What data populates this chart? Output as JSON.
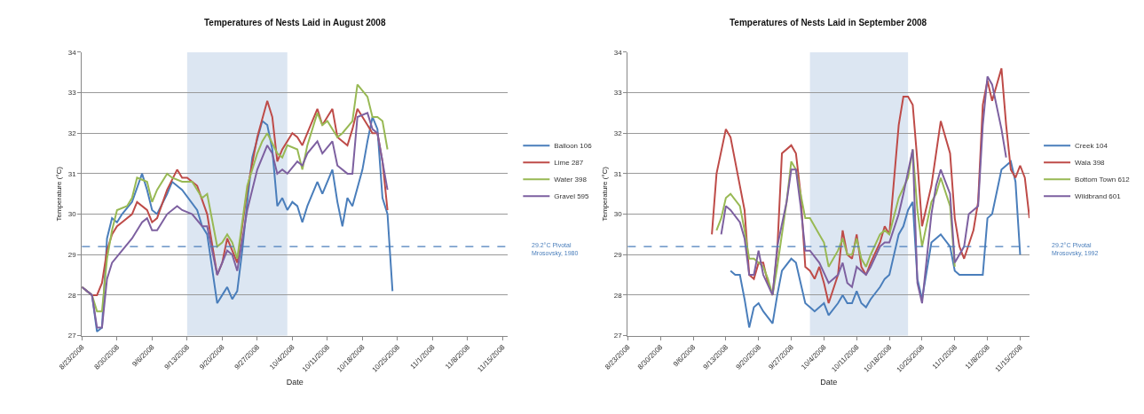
{
  "chart_data": [
    {
      "type": "line",
      "title": "Temperatures of Nests Laid in August 2008",
      "xlabel": "Date",
      "ylabel": "Temperature (°C)",
      "xlim": [
        "2008-08-23",
        "2008-11-16"
      ],
      "ylim": [
        27,
        34
      ],
      "yticks": [
        27,
        28,
        29,
        30,
        31,
        32,
        33,
        34
      ],
      "xticks": [
        {
          "value": "2008-08-23",
          "label": "8/23/2008"
        },
        {
          "value": "2008-08-30",
          "label": "8/30/2008"
        },
        {
          "value": "2008-09-06",
          "label": "9/6/2008"
        },
        {
          "value": "2008-09-13",
          "label": "9/13/2008"
        },
        {
          "value": "2008-09-20",
          "label": "9/20/2008"
        },
        {
          "value": "2008-09-27",
          "label": "9/27/2008"
        },
        {
          "value": "2008-10-04",
          "label": "10/4/2008"
        },
        {
          "value": "2008-10-11",
          "label": "10/11/2008"
        },
        {
          "value": "2008-10-18",
          "label": "10/18/2008"
        },
        {
          "value": "2008-10-25",
          "label": "10/25/2008"
        },
        {
          "value": "2008-11-01",
          "label": "11/1/2008"
        },
        {
          "value": "2008-11-08",
          "label": "11/8/2008"
        },
        {
          "value": "2008-11-15",
          "label": "11/15/2008"
        }
      ],
      "grid": "y",
      "legend": "right",
      "bands": [
        {
          "axis": "x",
          "from": "2008-09-13",
          "to": "2008-10-03",
          "color": "#dce6f2"
        }
      ],
      "ref_lines": [
        {
          "axis": "y",
          "value": 29.2,
          "color": "#4a7ebb",
          "line_style": "dashed"
        }
      ],
      "annotations": [
        "29.2°C Pivotal Mrosovsky, 1980"
      ],
      "series": [
        {
          "name": "Balloon 106",
          "color": "#4a7ebb",
          "x": [
            "2008-08-23",
            "2008-08-25",
            "2008-08-26",
            "2008-08-27",
            "2008-08-28",
            "2008-08-29",
            "2008-08-30",
            "2008-08-31",
            "2008-09-02",
            "2008-09-04",
            "2008-09-05",
            "2008-09-06",
            "2008-09-07",
            "2008-09-09",
            "2008-09-10",
            "2008-09-12",
            "2008-09-15",
            "2008-09-16",
            "2008-09-17",
            "2008-09-19",
            "2008-09-20",
            "2008-09-21",
            "2008-09-22",
            "2008-09-23",
            "2008-09-24",
            "2008-09-25",
            "2008-09-26",
            "2008-09-28",
            "2008-09-29",
            "2008-09-30",
            "2008-10-01",
            "2008-10-02",
            "2008-10-03",
            "2008-10-04",
            "2008-10-05",
            "2008-10-06",
            "2008-10-07",
            "2008-10-09",
            "2008-10-10",
            "2008-10-12",
            "2008-10-13",
            "2008-10-14",
            "2008-10-15",
            "2008-10-16",
            "2008-10-18",
            "2008-10-19",
            "2008-10-20",
            "2008-10-21",
            "2008-10-22",
            "2008-10-23",
            "2008-10-24"
          ],
          "values": [
            28.2,
            28.0,
            27.1,
            27.2,
            29.4,
            29.9,
            29.8,
            30.0,
            30.3,
            31.0,
            30.6,
            30.1,
            30.0,
            30.5,
            30.8,
            30.6,
            30.1,
            29.7,
            29.5,
            27.8,
            28.0,
            28.2,
            27.9,
            28.1,
            29.1,
            30.3,
            31.4,
            32.3,
            32.2,
            31.6,
            30.2,
            30.4,
            30.1,
            30.3,
            30.2,
            29.8,
            30.2,
            30.8,
            30.5,
            31.1,
            30.3,
            29.7,
            30.4,
            30.2,
            31.1,
            31.8,
            32.4,
            32.1,
            30.4,
            30.0,
            28.1
          ]
        },
        {
          "name": "Lime 287",
          "color": "#be4b48",
          "x": [
            "2008-08-23",
            "2008-08-25",
            "2008-08-26",
            "2008-08-27",
            "2008-08-28",
            "2008-08-29",
            "2008-08-30",
            "2008-08-31",
            "2008-09-02",
            "2008-09-03",
            "2008-09-05",
            "2008-09-06",
            "2008-09-07",
            "2008-09-09",
            "2008-09-11",
            "2008-09-12",
            "2008-09-13",
            "2008-09-15",
            "2008-09-17",
            "2008-09-19",
            "2008-09-20",
            "2008-09-21",
            "2008-09-23",
            "2008-09-25",
            "2008-09-27",
            "2008-09-29",
            "2008-09-30",
            "2008-10-01",
            "2008-10-02",
            "2008-10-04",
            "2008-10-05",
            "2008-10-06",
            "2008-10-07",
            "2008-10-09",
            "2008-10-10",
            "2008-10-12",
            "2008-10-13",
            "2008-10-15",
            "2008-10-16",
            "2008-10-17",
            "2008-10-19",
            "2008-10-20",
            "2008-10-21",
            "2008-10-22",
            "2008-10-23"
          ],
          "values": [
            28.2,
            28.0,
            28.0,
            28.3,
            29.1,
            29.5,
            29.7,
            29.8,
            30.0,
            30.3,
            30.1,
            29.8,
            29.9,
            30.6,
            31.1,
            30.9,
            30.9,
            30.7,
            30.0,
            28.5,
            28.8,
            29.4,
            28.8,
            30.6,
            31.9,
            32.8,
            32.4,
            31.3,
            31.6,
            32.0,
            31.9,
            31.7,
            32.0,
            32.6,
            32.2,
            32.6,
            31.9,
            31.7,
            32.1,
            32.6,
            32.2,
            32.0,
            32.0,
            31.3,
            30.1
          ]
        },
        {
          "name": "Water 398",
          "color": "#98b954",
          "x": [
            "2008-08-23",
            "2008-08-25",
            "2008-08-26",
            "2008-08-27",
            "2008-08-28",
            "2008-08-29",
            "2008-08-30",
            "2008-09-01",
            "2008-09-02",
            "2008-09-03",
            "2008-09-05",
            "2008-09-06",
            "2008-09-07",
            "2008-09-09",
            "2008-09-10",
            "2008-09-12",
            "2008-09-14",
            "2008-09-16",
            "2008-09-17",
            "2008-09-19",
            "2008-09-20",
            "2008-09-21",
            "2008-09-22",
            "2008-09-23",
            "2008-09-25",
            "2008-09-27",
            "2008-09-28",
            "2008-09-29",
            "2008-10-01",
            "2008-10-02",
            "2008-10-03",
            "2008-10-05",
            "2008-10-06",
            "2008-10-07",
            "2008-10-09",
            "2008-10-10",
            "2008-10-11",
            "2008-10-13",
            "2008-10-14",
            "2008-10-16",
            "2008-10-17",
            "2008-10-19",
            "2008-10-20",
            "2008-10-21",
            "2008-10-22",
            "2008-10-23"
          ],
          "values": [
            28.2,
            28.0,
            27.6,
            27.6,
            28.9,
            29.6,
            30.1,
            30.2,
            30.4,
            30.9,
            30.8,
            30.3,
            30.6,
            31.0,
            30.9,
            30.8,
            30.8,
            30.4,
            30.5,
            29.2,
            29.3,
            29.5,
            29.3,
            28.9,
            30.7,
            31.5,
            31.8,
            32.0,
            31.5,
            31.4,
            31.7,
            31.6,
            31.1,
            31.7,
            32.5,
            32.2,
            32.3,
            31.9,
            32.0,
            32.3,
            33.2,
            32.9,
            32.4,
            32.4,
            32.3,
            31.6
          ]
        },
        {
          "name": "Gravel 595",
          "color": "#7d60a0",
          "x": [
            "2008-08-23",
            "2008-08-25",
            "2008-08-26",
            "2008-08-27",
            "2008-08-28",
            "2008-08-29",
            "2008-08-31",
            "2008-09-02",
            "2008-09-04",
            "2008-09-05",
            "2008-09-06",
            "2008-09-07",
            "2008-09-09",
            "2008-09-11",
            "2008-09-12",
            "2008-09-14",
            "2008-09-16",
            "2008-09-17",
            "2008-09-19",
            "2008-09-21",
            "2008-09-22",
            "2008-09-23",
            "2008-09-25",
            "2008-09-27",
            "2008-09-29",
            "2008-09-30",
            "2008-10-01",
            "2008-10-02",
            "2008-10-03",
            "2008-10-05",
            "2008-10-06",
            "2008-10-07",
            "2008-10-09",
            "2008-10-10",
            "2008-10-12",
            "2008-10-13",
            "2008-10-15",
            "2008-10-16",
            "2008-10-17",
            "2008-10-19",
            "2008-10-20",
            "2008-10-21",
            "2008-10-22",
            "2008-10-23"
          ],
          "values": [
            28.2,
            28.0,
            27.2,
            27.2,
            28.4,
            28.8,
            29.1,
            29.4,
            29.8,
            29.9,
            29.6,
            29.6,
            30.0,
            30.2,
            30.1,
            30.0,
            29.7,
            29.7,
            28.5,
            29.1,
            29.0,
            28.6,
            30.1,
            31.1,
            31.7,
            31.5,
            31.0,
            31.1,
            31.0,
            31.3,
            31.2,
            31.5,
            31.8,
            31.5,
            31.8,
            31.2,
            31.0,
            31.0,
            32.4,
            32.5,
            32.1,
            32.0,
            31.3,
            30.6
          ]
        }
      ]
    },
    {
      "type": "line",
      "title": "Temperatures of Nests Laid in September 2008",
      "xlabel": "Date",
      "ylabel": "Temperature (°C)",
      "xlim": [
        "2008-08-23",
        "2008-11-17"
      ],
      "ylim": [
        27,
        34
      ],
      "yticks": [
        27,
        28,
        29,
        30,
        31,
        32,
        33,
        34
      ],
      "xticks": [
        {
          "value": "2008-08-23",
          "label": "8/23/2008"
        },
        {
          "value": "2008-08-30",
          "label": "8/30/2008"
        },
        {
          "value": "2008-09-06",
          "label": "9/6/2008"
        },
        {
          "value": "2008-09-13",
          "label": "9/13/2008"
        },
        {
          "value": "2008-09-20",
          "label": "9/20/2008"
        },
        {
          "value": "2008-09-27",
          "label": "9/27/2008"
        },
        {
          "value": "2008-10-04",
          "label": "10/4/2008"
        },
        {
          "value": "2008-10-11",
          "label": "10/11/2008"
        },
        {
          "value": "2008-10-18",
          "label": "10/18/2008"
        },
        {
          "value": "2008-10-25",
          "label": "10/25/2008"
        },
        {
          "value": "2008-11-01",
          "label": "11/1/2008"
        },
        {
          "value": "2008-11-08",
          "label": "11/8/2008"
        },
        {
          "value": "2008-11-15",
          "label": "11/15/2008"
        }
      ],
      "grid": "y",
      "legend": "right",
      "bands": [
        {
          "axis": "x",
          "from": "2008-10-01",
          "to": "2008-10-22",
          "color": "#dce6f2"
        }
      ],
      "ref_lines": [
        {
          "axis": "y",
          "value": 29.2,
          "color": "#4a7ebb",
          "line_style": "dashed"
        }
      ],
      "annotations": [
        "29.2°C Pivotal Mrosovsky, 1992"
      ],
      "series": [
        {
          "name": "Creek 104",
          "color": "#4a7ebb",
          "x": [
            "2008-09-14",
            "2008-09-15",
            "2008-09-16",
            "2008-09-17",
            "2008-09-18",
            "2008-09-19",
            "2008-09-20",
            "2008-09-21",
            "2008-09-23",
            "2008-09-24",
            "2008-09-25",
            "2008-09-27",
            "2008-09-28",
            "2008-09-29",
            "2008-09-30",
            "2008-10-01",
            "2008-10-02",
            "2008-10-04",
            "2008-10-05",
            "2008-10-07",
            "2008-10-08",
            "2008-10-09",
            "2008-10-10",
            "2008-10-11",
            "2008-10-12",
            "2008-10-13",
            "2008-10-14",
            "2008-10-16",
            "2008-10-17",
            "2008-10-18",
            "2008-10-20",
            "2008-10-21",
            "2008-10-22",
            "2008-10-23",
            "2008-10-24",
            "2008-10-25",
            "2008-10-27",
            "2008-10-28",
            "2008-10-29",
            "2008-10-31",
            "2008-11-01",
            "2008-11-02",
            "2008-11-03",
            "2008-11-05",
            "2008-11-06",
            "2008-11-07",
            "2008-11-08",
            "2008-11-09",
            "2008-11-11",
            "2008-11-12",
            "2008-11-13",
            "2008-11-14",
            "2008-11-15"
          ],
          "values": [
            28.6,
            28.5,
            28.5,
            27.9,
            27.2,
            27.7,
            27.8,
            27.6,
            27.3,
            28.0,
            28.6,
            28.9,
            28.8,
            28.3,
            27.8,
            27.7,
            27.6,
            27.8,
            27.5,
            27.8,
            28.0,
            27.8,
            27.8,
            28.1,
            27.8,
            27.7,
            27.9,
            28.2,
            28.4,
            28.5,
            29.5,
            29.7,
            30.1,
            30.3,
            28.4,
            27.9,
            29.3,
            29.4,
            29.5,
            29.2,
            28.6,
            28.5,
            28.5,
            28.5,
            28.5,
            28.5,
            29.9,
            30.0,
            31.1,
            31.2,
            31.3,
            30.8,
            29.0
          ]
        },
        {
          "name": "Wala 398",
          "color": "#be4b48",
          "x": [
            "2008-09-10",
            "2008-09-11",
            "2008-09-13",
            "2008-09-14",
            "2008-09-16",
            "2008-09-17",
            "2008-09-18",
            "2008-09-19",
            "2008-09-20",
            "2008-09-21",
            "2008-09-22",
            "2008-09-23",
            "2008-09-24",
            "2008-09-25",
            "2008-09-27",
            "2008-09-28",
            "2008-09-29",
            "2008-09-30",
            "2008-10-01",
            "2008-10-02",
            "2008-10-03",
            "2008-10-04",
            "2008-10-05",
            "2008-10-07",
            "2008-10-08",
            "2008-10-09",
            "2008-10-10",
            "2008-10-11",
            "2008-10-12",
            "2008-10-13",
            "2008-10-14",
            "2008-10-16",
            "2008-10-17",
            "2008-10-18",
            "2008-10-20",
            "2008-10-21",
            "2008-10-22",
            "2008-10-23",
            "2008-10-24",
            "2008-10-25",
            "2008-10-27",
            "2008-10-28",
            "2008-10-29",
            "2008-10-31",
            "2008-11-01",
            "2008-11-02",
            "2008-11-03",
            "2008-11-05",
            "2008-11-06",
            "2008-11-07",
            "2008-11-08",
            "2008-11-09",
            "2008-11-11",
            "2008-11-12",
            "2008-11-13",
            "2008-11-14",
            "2008-11-15",
            "2008-11-16",
            "2008-11-17"
          ],
          "values": [
            29.5,
            31.0,
            32.1,
            31.9,
            30.7,
            30.1,
            28.5,
            28.4,
            28.8,
            28.8,
            28.3,
            28.0,
            29.1,
            31.5,
            31.7,
            31.5,
            30.5,
            28.7,
            28.6,
            28.4,
            28.7,
            28.3,
            27.8,
            28.5,
            29.6,
            29.0,
            28.9,
            29.5,
            28.7,
            28.5,
            28.8,
            29.3,
            29.7,
            29.5,
            32.2,
            32.9,
            32.9,
            32.7,
            31.3,
            29.7,
            30.7,
            31.5,
            32.3,
            31.5,
            29.9,
            29.2,
            28.9,
            29.6,
            30.3,
            32.7,
            33.3,
            32.8,
            33.6,
            32.2,
            31.1,
            30.9,
            31.2,
            30.9,
            29.9
          ]
        },
        {
          "name": "Bottom Town 612",
          "color": "#98b954",
          "x": [
            "2008-09-11",
            "2008-09-12",
            "2008-09-13",
            "2008-09-14",
            "2008-09-16",
            "2008-09-17",
            "2008-09-18",
            "2008-09-19",
            "2008-09-20",
            "2008-09-21",
            "2008-09-22",
            "2008-09-23",
            "2008-09-24",
            "2008-09-26",
            "2008-09-27",
            "2008-09-28",
            "2008-09-29",
            "2008-09-30",
            "2008-10-01",
            "2008-10-03",
            "2008-10-04",
            "2008-10-05",
            "2008-10-07",
            "2008-10-08",
            "2008-10-09",
            "2008-10-10",
            "2008-10-11",
            "2008-10-12",
            "2008-10-13",
            "2008-10-14",
            "2008-10-16",
            "2008-10-17",
            "2008-10-18",
            "2008-10-20",
            "2008-10-22",
            "2008-10-23",
            "2008-10-24",
            "2008-10-25",
            "2008-10-27",
            "2008-10-28",
            "2008-10-29",
            "2008-10-31",
            "2008-11-01"
          ],
          "values": [
            29.6,
            29.9,
            30.4,
            30.5,
            30.2,
            29.6,
            28.9,
            28.9,
            28.8,
            28.7,
            28.4,
            28.0,
            28.7,
            30.3,
            31.3,
            31.1,
            30.5,
            29.9,
            29.9,
            29.5,
            29.3,
            28.7,
            29.1,
            29.4,
            29.0,
            29.0,
            29.4,
            28.9,
            28.7,
            29.0,
            29.5,
            29.6,
            29.5,
            30.4,
            30.9,
            31.6,
            30.1,
            29.2,
            30.3,
            30.5,
            30.9,
            30.2,
            28.7
          ]
        },
        {
          "name": "Wildbrand 601",
          "color": "#7d60a0",
          "x": [
            "2008-09-12",
            "2008-09-13",
            "2008-09-14",
            "2008-09-16",
            "2008-09-17",
            "2008-09-18",
            "2008-09-19",
            "2008-09-20",
            "2008-09-21",
            "2008-09-23",
            "2008-09-24",
            "2008-09-26",
            "2008-09-27",
            "2008-09-28",
            "2008-09-29",
            "2008-09-30",
            "2008-10-01",
            "2008-10-03",
            "2008-10-05",
            "2008-10-07",
            "2008-10-08",
            "2008-10-09",
            "2008-10-10",
            "2008-10-11",
            "2008-10-12",
            "2008-10-13",
            "2008-10-14",
            "2008-10-16",
            "2008-10-17",
            "2008-10-18",
            "2008-10-20",
            "2008-10-21",
            "2008-10-23",
            "2008-10-24",
            "2008-10-25",
            "2008-10-27",
            "2008-10-28",
            "2008-10-29",
            "2008-10-31",
            "2008-11-01",
            "2008-11-03",
            "2008-11-04",
            "2008-11-06",
            "2008-11-07",
            "2008-11-08",
            "2008-11-09",
            "2008-11-11",
            "2008-11-12"
          ],
          "values": [
            29.5,
            30.2,
            30.1,
            29.8,
            29.4,
            28.5,
            28.5,
            29.1,
            28.5,
            28.0,
            29.2,
            30.3,
            31.1,
            31.1,
            30.2,
            29.1,
            29.1,
            28.8,
            28.3,
            28.5,
            28.8,
            28.3,
            28.2,
            28.7,
            28.6,
            28.5,
            28.7,
            29.2,
            29.3,
            29.3,
            30.0,
            30.5,
            31.6,
            28.3,
            27.8,
            30.0,
            30.7,
            31.1,
            30.5,
            28.8,
            29.2,
            30.0,
            30.2,
            32.2,
            33.4,
            33.2,
            32.1,
            31.4
          ]
        }
      ]
    }
  ]
}
